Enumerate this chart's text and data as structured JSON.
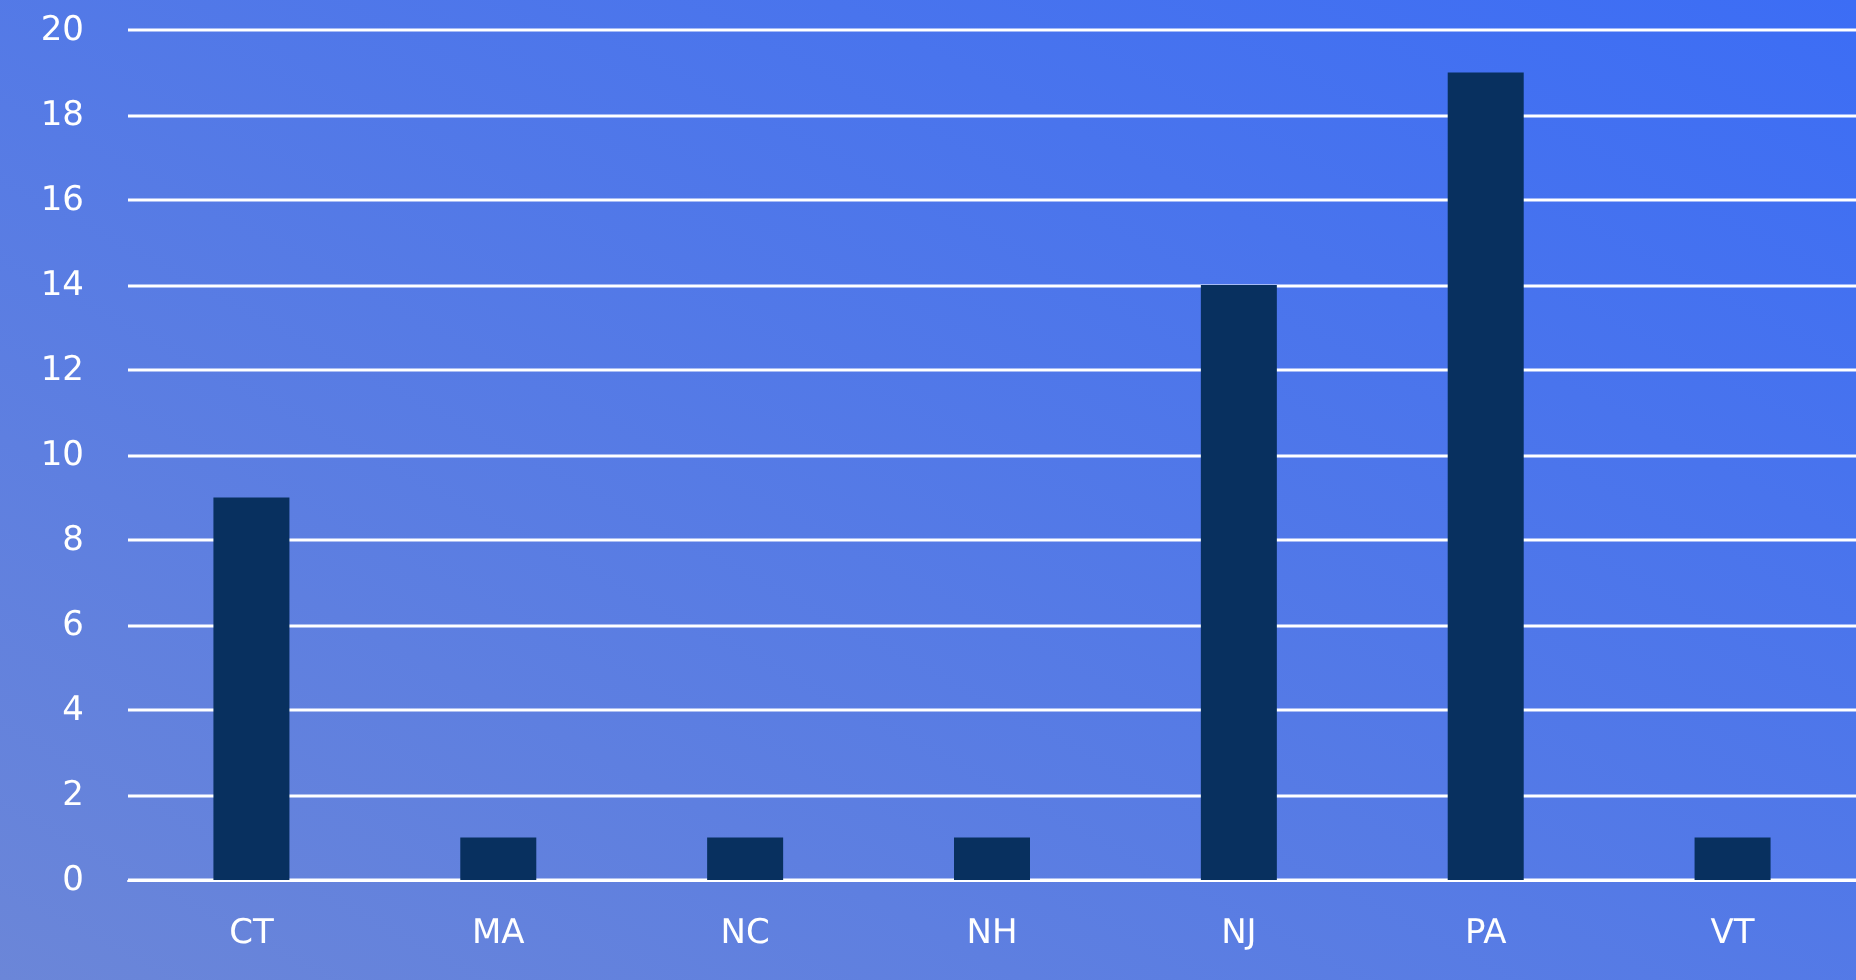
{
  "chart_data": {
    "type": "bar",
    "categories": [
      "CT",
      "MA",
      "NC",
      "NH",
      "NJ",
      "PA",
      "VT"
    ],
    "values": [
      9,
      1,
      1,
      1,
      14,
      19,
      1
    ],
    "color": "#08305f",
    "ylim": [
      0,
      20
    ],
    "yticks": [
      0,
      2,
      4,
      6,
      8,
      10,
      12,
      14,
      16,
      18,
      20
    ],
    "grid": "y"
  }
}
